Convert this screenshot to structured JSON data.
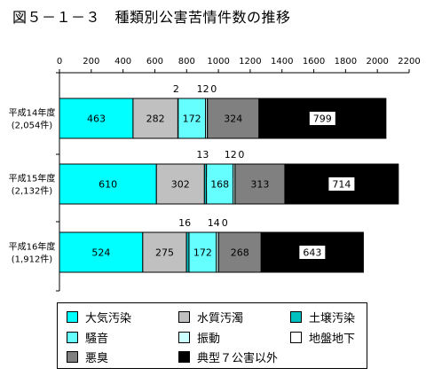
{
  "title": "図５－１－３　種類別公害苦情件数の推移",
  "chart_data": {
    "type": "bar",
    "orientation": "horizontal",
    "stacked": true,
    "xlim": [
      0,
      2200
    ],
    "x_ticks": [
      "0",
      "200",
      "400",
      "600",
      "800",
      "1000",
      "1200",
      "1400",
      "1600",
      "1800",
      "2000",
      "2200"
    ],
    "categories": [
      {
        "year": "平成14年度",
        "total": "(2,054件)"
      },
      {
        "year": "平成15年度",
        "total": "(2,132件)"
      },
      {
        "year": "平成16年度",
        "total": "(1,912件)"
      }
    ],
    "series": [
      {
        "name": "大気汚染",
        "color": "#00ffff",
        "values": [
          463,
          610,
          524
        ]
      },
      {
        "name": "水質汚濁",
        "color": "#c0c0c0",
        "values": [
          282,
          302,
          275
        ]
      },
      {
        "name": "土壌汚染",
        "color": "#00c0c0",
        "values": [
          2,
          13,
          16
        ]
      },
      {
        "name": "騒音",
        "color": "#66ffff",
        "values": [
          172,
          168,
          172
        ]
      },
      {
        "name": "振動",
        "color": "#ccffff",
        "values": [
          12,
          12,
          14
        ]
      },
      {
        "name": "地盤地下",
        "color": "#ffffff",
        "values": [
          0,
          0,
          0
        ]
      },
      {
        "name": "悪臭",
        "color": "#808080",
        "values": [
          324,
          313,
          268
        ]
      },
      {
        "name": "典型７公害以外",
        "color": "#000000",
        "values": [
          799,
          714,
          643
        ]
      }
    ]
  },
  "legend": {
    "items": [
      {
        "label": "大気汚染",
        "color": "#00ffff"
      },
      {
        "label": "水質汚濁",
        "color": "#c0c0c0"
      },
      {
        "label": "土壌汚染",
        "color": "#00c0c0"
      },
      {
        "label": "騒音",
        "color": "#66ffff"
      },
      {
        "label": "振動",
        "color": "#ccffff"
      },
      {
        "label": "地盤地下",
        "color": "#ffffff"
      },
      {
        "label": "悪臭",
        "color": "#808080"
      },
      {
        "label": "典型７公害以外",
        "color": "#000000"
      }
    ]
  }
}
